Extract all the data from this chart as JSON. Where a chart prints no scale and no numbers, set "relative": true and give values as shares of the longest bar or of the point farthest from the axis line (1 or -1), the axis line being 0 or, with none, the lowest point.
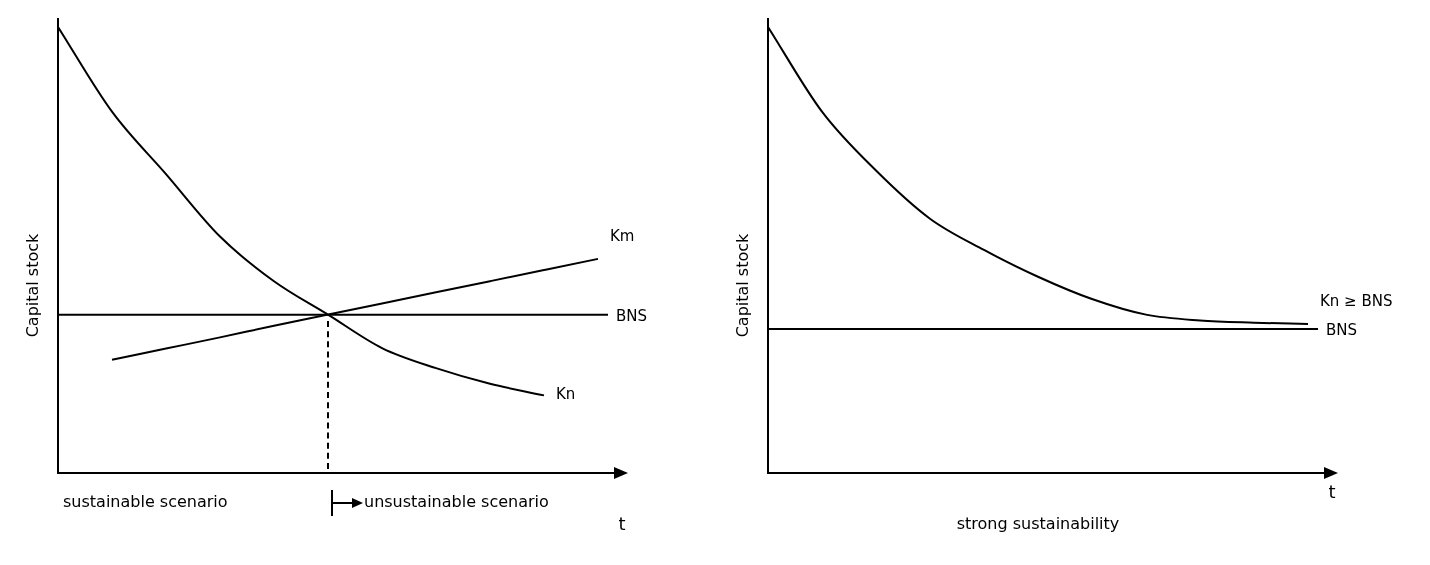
{
  "chart_data": [
    {
      "type": "line",
      "relative": true,
      "ylabel": "Capital stock",
      "xlabel": "t",
      "categories": [
        null,
        null,
        null,
        null,
        null,
        null,
        null,
        null,
        null,
        null,
        null
      ],
      "legend": false,
      "marker": "none",
      "line_style": "solid",
      "series": [
        {
          "name": "Kn",
          "color": "#000000",
          "values": [
            1.0,
            0.81,
            0.67,
            0.53,
            0.43,
            0.355,
            0.28,
            0.235,
            0.2,
            0.174,
            null
          ]
        },
        {
          "name": "Km",
          "color": "#000000",
          "values": [
            null,
            0.254,
            0.279,
            0.304,
            0.33,
            0.355,
            0.38,
            0.405,
            0.43,
            0.455,
            0.48
          ]
        }
      ],
      "ref_lines": [
        {
          "axis": "y",
          "value": 0.355,
          "label": "BNS",
          "color": "#000000",
          "line_style": "solid"
        }
      ],
      "annotations": [
        "sustainable scenario",
        "unsustainable scenario"
      ]
    },
    {
      "type": "line",
      "relative": true,
      "ylabel": "Capital stock",
      "xlabel": "t",
      "categories": [
        null,
        null,
        null,
        null,
        null,
        null,
        null,
        null,
        null,
        null,
        null
      ],
      "legend": false,
      "marker": "none",
      "line_style": "solid",
      "series": [
        {
          "name": "Kn ≥ BNS",
          "color": "#000000",
          "values": [
            1.0,
            0.81,
            0.678,
            0.57,
            0.5,
            0.44,
            0.39,
            0.355,
            0.342,
            0.337,
            0.334
          ]
        }
      ],
      "ref_lines": [
        {
          "axis": "y",
          "value": 0.323,
          "label": "BNS",
          "color": "#000000",
          "line_style": "solid"
        }
      ],
      "annotations": [
        "strong sustainability"
      ]
    }
  ]
}
